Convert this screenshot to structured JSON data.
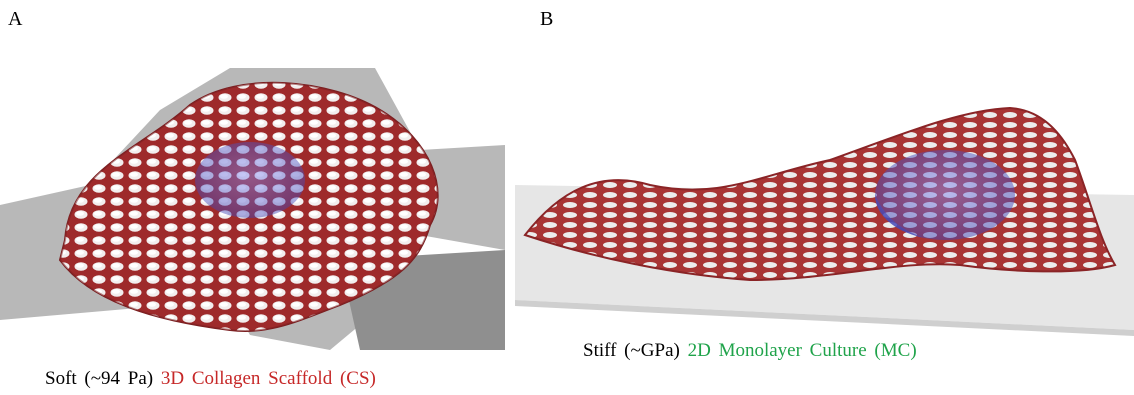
{
  "panels": [
    {
      "label": "A",
      "caption": {
        "prefix": "Soft (~94 Pa)",
        "highlight": "3D Collagen Scaffold (CS)"
      }
    },
    {
      "label": "B",
      "caption": {
        "prefix": "Stiff (~GPa)",
        "highlight": "2D Monolayer Culture (MC)"
      }
    }
  ]
}
